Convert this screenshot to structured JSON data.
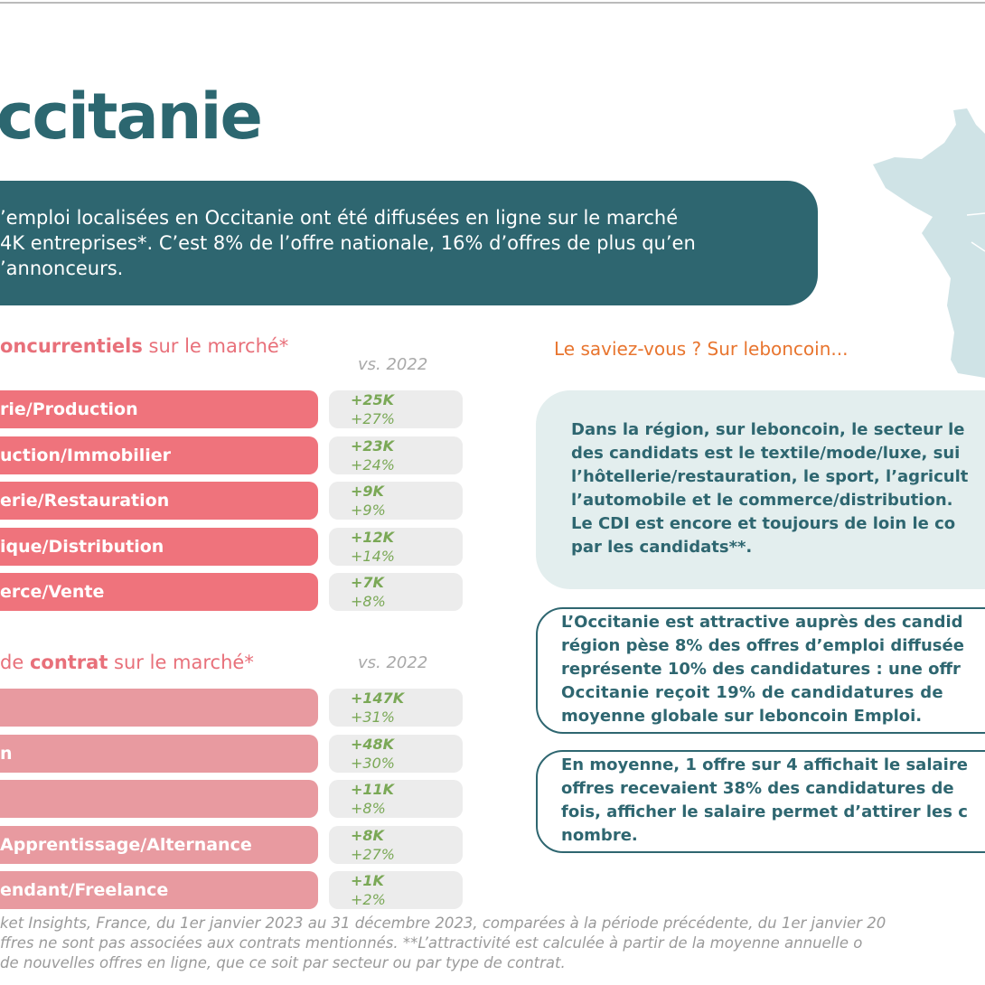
{
  "header": {
    "title": "ccitanie"
  },
  "intro": {
    "lines": [
      "’emploi localisées en Occitanie ont été diffusées en ligne sur le marché",
      "4K entreprises*. C’est 8% de l’offre nationale, 16% d’offres de plus qu’en",
      "’annonceurs."
    ]
  },
  "sectors": {
    "heading_strong": "oncurrentiels",
    "heading_rest": " sur le marché*",
    "vs": "vs. 2022",
    "rows": [
      {
        "label": "rie/Production",
        "change": "+25K",
        "pct": "+27%"
      },
      {
        "label": "uction/Immobilier",
        "change": "+23K",
        "pct": "+24%"
      },
      {
        "label": "erie/Restauration",
        "change": "+9K",
        "pct": "+9%"
      },
      {
        "label": "ique/Distribution",
        "change": "+12K",
        "pct": "+14%"
      },
      {
        "label": "erce/Vente",
        "change": "+7K",
        "pct": "+8%"
      }
    ]
  },
  "contracts": {
    "heading_pre": "de ",
    "heading_strong": "contrat",
    "heading_rest": " sur le marché*",
    "vs": "vs. 2022",
    "rows": [
      {
        "change": "+147K",
        "pct": "+31%"
      },
      {
        "label": "n",
        "change": "+48K",
        "pct": "+30%"
      },
      {
        "change": "+11K",
        "pct": "+8%"
      },
      {
        "label": "Apprentissage/Alternance",
        "change": "+8K",
        "pct": "+27%"
      },
      {
        "label": "endant/Freelance",
        "change": "+1K",
        "pct": "+2%"
      }
    ]
  },
  "saviez": {
    "heading": "Le saviez-vous ? Sur leboncoin...",
    "box1": [
      "Dans la région, sur leboncoin, le secteur le",
      "des candidats est le textile/mode/luxe, sui",
      "l’hôtellerie/restauration, le sport, l’agricult",
      "l’automobile et le commerce/distribution.",
      "Le CDI est encore et toujours de loin le co",
      "par les candidats**."
    ],
    "box2": [
      {
        "text": "L’Occitanie est attractive auprès des candid"
      },
      {
        "text": "région pèse 8% des offres d’emploi diffusée"
      },
      {
        "text": "représente 10% des candidatures : ",
        "strong": "une offr"
      },
      {
        "text": "Occitanie reçoit 19% de candidatures de",
        "emphasis": true
      },
      {
        "text": "moyenne globale sur leboncoin Emploi."
      }
    ],
    "box3": [
      "En moyenne, 1 offre sur 4 affichait le salaire",
      "offres recevaient 38% des candidatures de",
      "fois, afficher le salaire permet d’attirer les c",
      "nombre."
    ]
  },
  "footnote": [
    "ket Insights, France, du 1er janvier 2023 au 31 décembre 2023, comparées à la période précédente, du 1er janvier 20",
    "ffres ne sont pas associées aux contrats mentionnés. **L’attractivité est calculée à partir de la moyenne annuelle o",
    "de nouvelles offres en ligne, que ce soit par secteur ou par type de contrat."
  ]
}
